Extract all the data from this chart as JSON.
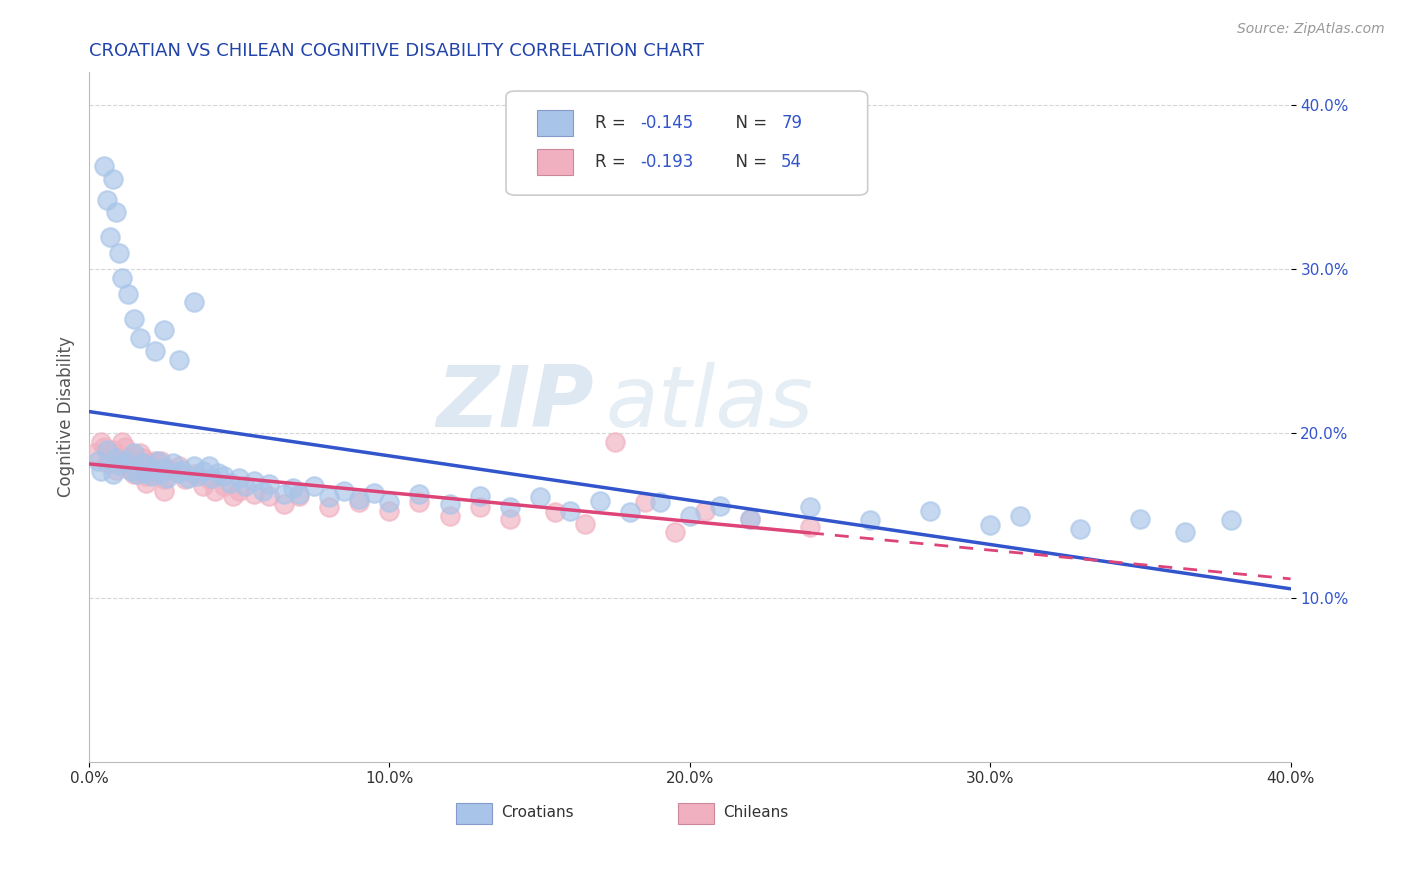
{
  "title": "CROATIAN VS CHILEAN COGNITIVE DISABILITY CORRELATION CHART",
  "source": "Source: ZipAtlas.com",
  "ylabel": "Cognitive Disability",
  "xlim": [
    0.0,
    0.4
  ],
  "ylim": [
    0.0,
    0.42
  ],
  "blue_color": "#a8c4e8",
  "pink_color": "#f0b0c0",
  "line_blue": "#3355cc",
  "line_pink": "#dd4477",
  "grid_color": "#cccccc",
  "title_color": "#2244aa",
  "watermark_zip": "ZIP",
  "watermark_atlas": "atlas",
  "cr_x": [
    0.003,
    0.004,
    0.006,
    0.008,
    0.009,
    0.01,
    0.012,
    0.014,
    0.015,
    0.016,
    0.018,
    0.019,
    0.02,
    0.021,
    0.023,
    0.024,
    0.025,
    0.026,
    0.028,
    0.03,
    0.031,
    0.033,
    0.035,
    0.036,
    0.038,
    0.04,
    0.041,
    0.043,
    0.045,
    0.047,
    0.05,
    0.052,
    0.055,
    0.058,
    0.06,
    0.065,
    0.068,
    0.07,
    0.075,
    0.08,
    0.085,
    0.09,
    0.095,
    0.1,
    0.11,
    0.12,
    0.13,
    0.14,
    0.15,
    0.16,
    0.17,
    0.18,
    0.19,
    0.2,
    0.21,
    0.22,
    0.24,
    0.26,
    0.28,
    0.3,
    0.31,
    0.33,
    0.35,
    0.365,
    0.38,
    0.005,
    0.006,
    0.007,
    0.008,
    0.009,
    0.01,
    0.011,
    0.013,
    0.015,
    0.017,
    0.022,
    0.025,
    0.03,
    0.035
  ],
  "cr_y": [
    0.183,
    0.177,
    0.19,
    0.175,
    0.185,
    0.181,
    0.183,
    0.177,
    0.188,
    0.175,
    0.182,
    0.176,
    0.18,
    0.174,
    0.183,
    0.176,
    0.179,
    0.173,
    0.182,
    0.176,
    0.178,
    0.173,
    0.18,
    0.174,
    0.177,
    0.18,
    0.173,
    0.176,
    0.174,
    0.17,
    0.173,
    0.168,
    0.171,
    0.165,
    0.169,
    0.163,
    0.167,
    0.163,
    0.168,
    0.161,
    0.165,
    0.16,
    0.164,
    0.158,
    0.163,
    0.157,
    0.162,
    0.155,
    0.161,
    0.153,
    0.159,
    0.152,
    0.158,
    0.15,
    0.156,
    0.148,
    0.155,
    0.147,
    0.153,
    0.144,
    0.15,
    0.142,
    0.148,
    0.14,
    0.147,
    0.363,
    0.342,
    0.32,
    0.355,
    0.335,
    0.31,
    0.295,
    0.285,
    0.27,
    0.258,
    0.25,
    0.263,
    0.245,
    0.28
  ],
  "ch_x": [
    0.002,
    0.004,
    0.006,
    0.008,
    0.01,
    0.012,
    0.014,
    0.015,
    0.016,
    0.018,
    0.019,
    0.02,
    0.022,
    0.024,
    0.025,
    0.027,
    0.03,
    0.032,
    0.035,
    0.038,
    0.04,
    0.042,
    0.045,
    0.048,
    0.05,
    0.055,
    0.06,
    0.065,
    0.07,
    0.08,
    0.09,
    0.1,
    0.11,
    0.12,
    0.13,
    0.14,
    0.155,
    0.165,
    0.175,
    0.185,
    0.195,
    0.205,
    0.22,
    0.24,
    0.005,
    0.007,
    0.009,
    0.011,
    0.013,
    0.015,
    0.017,
    0.019,
    0.022,
    0.025
  ],
  "ch_y": [
    0.188,
    0.195,
    0.182,
    0.19,
    0.183,
    0.192,
    0.178,
    0.186,
    0.178,
    0.185,
    0.174,
    0.182,
    0.175,
    0.183,
    0.172,
    0.178,
    0.18,
    0.172,
    0.175,
    0.168,
    0.172,
    0.165,
    0.168,
    0.162,
    0.165,
    0.163,
    0.162,
    0.157,
    0.162,
    0.155,
    0.158,
    0.153,
    0.158,
    0.15,
    0.155,
    0.148,
    0.152,
    0.145,
    0.195,
    0.158,
    0.14,
    0.153,
    0.148,
    0.143,
    0.192,
    0.185,
    0.178,
    0.195,
    0.185,
    0.175,
    0.188,
    0.17,
    0.183,
    0.165
  ]
}
